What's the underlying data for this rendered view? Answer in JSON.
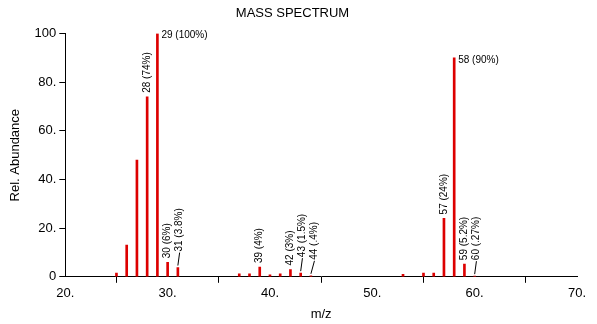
{
  "chart_data": {
    "type": "bar",
    "title": "MASS SPECTRUM",
    "x_label": "m/z",
    "y_label": "Rel. Abundance",
    "x": [
      25,
      26,
      27,
      28,
      29,
      30,
      31,
      37,
      38,
      39,
      40,
      41,
      42,
      43,
      44,
      53,
      55,
      56,
      57,
      58,
      59,
      60
    ],
    "values": [
      1.5,
      13,
      48,
      74,
      100,
      6,
      3.8,
      1.2,
      1.2,
      4,
      0.8,
      1.2,
      3,
      1.5,
      0.4,
      1,
      1.5,
      1.5,
      24,
      90,
      5.2,
      0.27
    ],
    "value_labels": [
      null,
      null,
      null,
      "28 (74%)",
      "29 (100%)",
      "30 (6%)",
      "31 (3.8%)",
      null,
      null,
      "39 (4%)",
      null,
      null,
      "42 (3%)",
      "43 (1.5%)",
      "44 (.4%)",
      null,
      null,
      null,
      "57 (24%)",
      "58 (90%)",
      "59 (5.2%)",
      "60 (.27%)"
    ],
    "data_labels": true,
    "color": "#dd0000",
    "xlim": [
      20,
      70
    ],
    "xticks": [
      {
        "value": 20,
        "label": "20."
      },
      {
        "value": 30,
        "label": "30."
      },
      {
        "value": 40,
        "label": "40."
      },
      {
        "value": 50,
        "label": "50."
      },
      {
        "value": 60,
        "label": "60."
      },
      {
        "value": 70,
        "label": "70."
      }
    ],
    "ylim": [
      0,
      100
    ],
    "yticks": [
      0,
      {
        "value": 20,
        "label": "20."
      },
      {
        "value": 40,
        "label": "40."
      },
      {
        "value": 60,
        "label": "60."
      },
      {
        "value": 80,
        "label": "80."
      },
      100
    ],
    "grid": false
  }
}
